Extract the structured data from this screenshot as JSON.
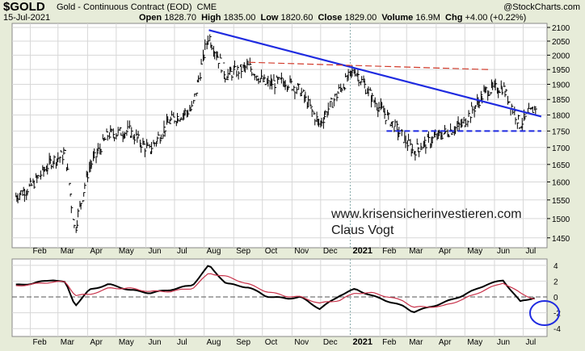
{
  "header": {
    "symbol": "$GOLD",
    "contract": "Gold - Continuous Contract (EOD)",
    "exchange": "CME",
    "credit": "@StockCharts.com",
    "date": "15-Jul-2021",
    "open_label": "Open",
    "open_value": "1828.70",
    "high_label": "High",
    "high_value": "1835.00",
    "low_label": "Low",
    "low_value": "1820.60",
    "close_label": "Close",
    "close_value": "1829.00",
    "volume_label": "Volume",
    "volume_value": "16.9M",
    "chg_label": "Chg",
    "chg_value": "+4.00 (+0.22%)"
  },
  "watermark": {
    "line1": "www.krisensicherinvestieren.com",
    "line2": "Claus Vogt"
  },
  "colors": {
    "background": "#e7ecd9",
    "plot": "#ffffff",
    "grid": "#d7d7d7",
    "price": "#000000",
    "trendline": "#1f2be0",
    "resistance": "#d23a2a",
    "signal": "#c8324a",
    "highlight": "#1f2be0"
  },
  "chart_data": [
    {
      "type": "ohlc",
      "x_labels": [
        "Feb",
        "Mar",
        "Apr",
        "May",
        "Jun",
        "Jul",
        "Aug",
        "Sep",
        "Oct",
        "Nov",
        "Dec",
        "2021",
        "Feb",
        "Mar",
        "Apr",
        "May",
        "Jun",
        "Jul"
      ],
      "y_ticks": [
        1450,
        1500,
        1550,
        1600,
        1650,
        1700,
        1750,
        1800,
        1850,
        1900,
        1950,
        2000,
        2050,
        2100
      ],
      "ylim": [
        1425,
        2115
      ],
      "y_scale": "log",
      "grid": true,
      "monthly_close": [
        [
          "2020-01-17",
          1560
        ],
        [
          "2020-02-03",
          1590
        ],
        [
          "2020-02-24",
          1660
        ],
        [
          "2020-03-09",
          1680
        ],
        [
          "2020-03-19",
          1470
        ],
        [
          "2020-04-03",
          1640
        ],
        [
          "2020-04-23",
          1740
        ],
        [
          "2020-05-15",
          1750
        ],
        [
          "2020-06-05",
          1690
        ],
        [
          "2020-06-26",
          1780
        ],
        [
          "2020-07-20",
          1820
        ],
        [
          "2020-08-06",
          2070
        ],
        [
          "2020-08-24",
          1930
        ],
        [
          "2020-09-17",
          1960
        ],
        [
          "2020-10-05",
          1900
        ],
        [
          "2020-10-26",
          1910
        ],
        [
          "2020-11-10",
          1880
        ],
        [
          "2020-11-30",
          1770
        ],
        [
          "2020-12-21",
          1880
        ],
        [
          "2021-01-06",
          1950
        ],
        [
          "2021-01-25",
          1850
        ],
        [
          "2021-02-26",
          1730
        ],
        [
          "2021-03-08",
          1690
        ],
        [
          "2021-04-07",
          1740
        ],
        [
          "2021-04-29",
          1770
        ],
        [
          "2021-05-24",
          1880
        ],
        [
          "2021-06-10",
          1890
        ],
        [
          "2021-06-28",
          1770
        ],
        [
          "2021-07-15",
          1829
        ]
      ],
      "annotations": [
        {
          "type": "trendline",
          "style": "solid",
          "color": "#1f2be0",
          "points": [
            [
              "2020-08-06",
              2090
            ],
            [
              "2021-07-20",
              1795
            ]
          ]
        },
        {
          "type": "trendline",
          "style": "dashed",
          "color": "#d23a2a",
          "points": [
            [
              "2020-09-17",
              1975
            ],
            [
              "2021-05-26",
              1950
            ]
          ]
        },
        {
          "type": "support",
          "style": "dashed",
          "color": "#1f2be0",
          "points": [
            [
              "2021-02-08",
              1750
            ],
            [
              "2021-07-20",
              1750
            ]
          ]
        }
      ]
    },
    {
      "type": "line",
      "x_labels": [
        "Feb",
        "Mar",
        "Apr",
        "May",
        "Jun",
        "Jul",
        "Aug",
        "Sep",
        "Oct",
        "Nov",
        "Dec",
        "2021",
        "Feb",
        "Mar",
        "Apr",
        "May",
        "Jun",
        "Jul"
      ],
      "y_ticks": [
        -4,
        -2,
        0,
        2,
        4
      ],
      "ylim": [
        -5,
        4.8
      ],
      "reference_line": 0,
      "series": [
        {
          "points": [
            [
              "2020-01-17",
              1.5
            ],
            [
              "2020-02-03",
              1.7
            ],
            [
              "2020-02-24",
              2.2
            ],
            [
              "2020-03-09",
              1.8
            ],
            [
              "2020-03-19",
              -1.1
            ],
            [
              "2020-04-03",
              0.9
            ],
            [
              "2020-04-23",
              1.6
            ],
            [
              "2020-05-15",
              0.9
            ],
            [
              "2020-06-05",
              0.5
            ],
            [
              "2020-06-26",
              0.9
            ],
            [
              "2020-07-20",
              1.5
            ],
            [
              "2020-08-06",
              4.0
            ],
            [
              "2020-08-24",
              1.7
            ],
            [
              "2020-09-17",
              1.2
            ],
            [
              "2020-10-05",
              0.1
            ],
            [
              "2020-10-26",
              -0.2
            ],
            [
              "2020-11-10",
              0.0
            ],
            [
              "2020-11-30",
              -1.5
            ],
            [
              "2020-12-21",
              0.2
            ],
            [
              "2021-01-06",
              1.0
            ],
            [
              "2021-01-25",
              0.1
            ],
            [
              "2021-02-26",
              -1.2
            ],
            [
              "2021-03-08",
              -1.9
            ],
            [
              "2021-04-07",
              -0.8
            ],
            [
              "2021-04-29",
              0.2
            ],
            [
              "2021-05-24",
              1.6
            ],
            [
              "2021-06-10",
              2.1
            ],
            [
              "2021-06-28",
              -0.6
            ],
            [
              "2021-07-15",
              0.0
            ]
          ]
        },
        {
          "points": [
            [
              "2020-01-17",
              1.4
            ],
            [
              "2020-02-03",
              1.6
            ],
            [
              "2020-02-24",
              1.9
            ],
            [
              "2020-03-09",
              1.9
            ],
            [
              "2020-03-19",
              0.2
            ],
            [
              "2020-04-03",
              0.3
            ],
            [
              "2020-04-23",
              1.1
            ],
            [
              "2020-05-15",
              1.1
            ],
            [
              "2020-06-05",
              0.7
            ],
            [
              "2020-06-26",
              0.7
            ],
            [
              "2020-07-20",
              1.1
            ],
            [
              "2020-08-06",
              3.0
            ],
            [
              "2020-08-24",
              2.6
            ],
            [
              "2020-09-17",
              1.6
            ],
            [
              "2020-10-05",
              0.7
            ],
            [
              "2020-10-26",
              0.1
            ],
            [
              "2020-11-10",
              0.0
            ],
            [
              "2020-11-30",
              -0.8
            ],
            [
              "2020-12-21",
              -0.4
            ],
            [
              "2021-01-06",
              0.5
            ],
            [
              "2021-01-25",
              0.5
            ],
            [
              "2021-02-26",
              -0.5
            ],
            [
              "2021-03-08",
              -1.3
            ],
            [
              "2021-04-07",
              -1.2
            ],
            [
              "2021-04-29",
              -0.3
            ],
            [
              "2021-05-24",
              1.0
            ],
            [
              "2021-06-10",
              1.8
            ],
            [
              "2021-06-28",
              0.5
            ],
            [
              "2021-07-15",
              -0.4
            ]
          ]
        }
      ]
    }
  ]
}
